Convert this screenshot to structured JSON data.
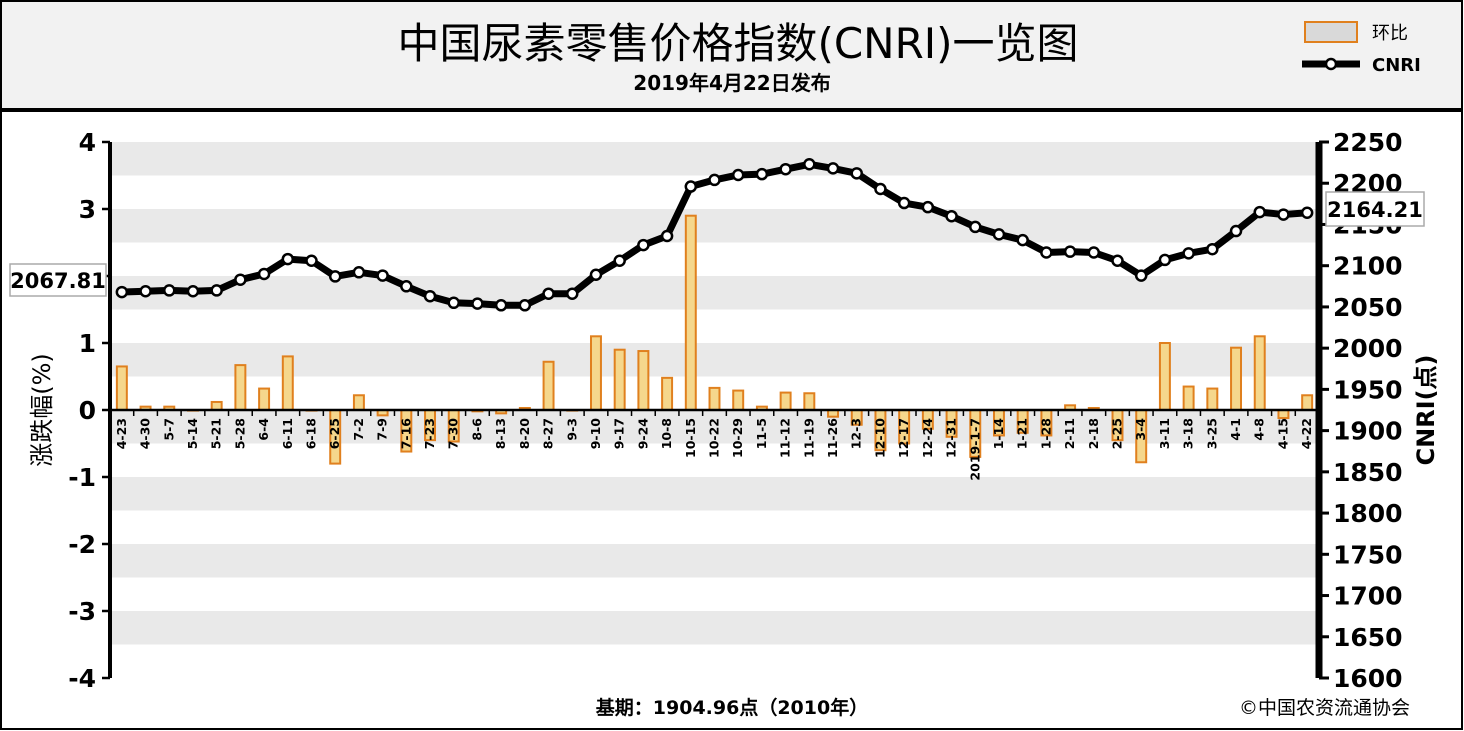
{
  "header": {
    "title": "中国尿素零售价格指数(CNRI)一览图",
    "subtitle": "2019年4月22日发布"
  },
  "legend": {
    "bar_label": "环比",
    "line_label": "CNRI"
  },
  "footer": {
    "base_period": "基期：1904.96点（2010年）",
    "copyright": "©中国农资流通协会"
  },
  "colors": {
    "bar_fill": "#f5d78c",
    "bar_border": "#e0801e",
    "line": "#000000",
    "marker_fill": "#ffffff",
    "band_fill": "#e9e9e9",
    "header_bg": "#f2f2f2"
  },
  "chart_data": {
    "type": "bar+line",
    "categories": [
      "4-23",
      "4-30",
      "5-7",
      "5-14",
      "5-21",
      "5-28",
      "6-4",
      "6-11",
      "6-18",
      "6-25",
      "7-2",
      "7-9",
      "7-16",
      "7-23",
      "7-30",
      "8-6",
      "8-13",
      "8-20",
      "8-27",
      "9-3",
      "9-10",
      "9-17",
      "9-24",
      "10-8",
      "10-15",
      "10-22",
      "10-29",
      "11-5",
      "11-12",
      "11-19",
      "11-26",
      "12-3",
      "12-10",
      "12-17",
      "12-24",
      "12-31",
      "2019-1-7",
      "1-14",
      "1-21",
      "1-28",
      "2-11",
      "2-18",
      "2-25",
      "3-4",
      "3-11",
      "3-18",
      "3-25",
      "4-1",
      "4-8",
      "4-15",
      "4-22"
    ],
    "series": [
      {
        "name": "环比",
        "axis": "left",
        "values": [
          0.65,
          0.05,
          0.05,
          0.0,
          0.12,
          0.67,
          0.32,
          0.8,
          0.0,
          -0.8,
          0.22,
          -0.08,
          -0.62,
          -0.45,
          -0.47,
          -0.02,
          -0.05,
          0.03,
          0.72,
          0.0,
          1.1,
          0.9,
          0.88,
          0.48,
          2.9,
          0.33,
          0.29,
          0.05,
          0.26,
          0.25,
          -0.1,
          -0.22,
          -0.6,
          -0.5,
          -0.28,
          -0.4,
          -0.7,
          -0.38,
          -0.34,
          -0.38,
          0.07,
          0.03,
          -0.45,
          -0.78,
          1.0,
          0.35,
          0.32,
          0.93,
          1.1,
          -0.12,
          0.22
        ]
      },
      {
        "name": "CNRI",
        "axis": "right",
        "values": [
          2068,
          2069,
          2070,
          2069,
          2070,
          2083,
          2090,
          2108,
          2106,
          2087,
          2092,
          2088,
          2075,
          2063,
          2055,
          2054,
          2052,
          2052,
          2066,
          2066,
          2089,
          2106,
          2125,
          2136,
          2196,
          2204,
          2210,
          2211,
          2217,
          2223,
          2218,
          2212,
          2193,
          2176,
          2171,
          2160,
          2147,
          2138,
          2131,
          2116,
          2117,
          2116,
          2106,
          2088,
          2107,
          2115,
          2120,
          2142,
          2165,
          2162,
          2164.21
        ]
      }
    ],
    "first_label": "2067.81",
    "last_label": "2164.21",
    "y_left": {
      "label": "涨跌幅(%)",
      "min": -4,
      "max": 4,
      "step": 1,
      "ticks": [
        "-4",
        "-3",
        "-2",
        "-1",
        "0",
        "1",
        "2",
        "3",
        "4"
      ]
    },
    "y_right": {
      "label": "CNRI(点)",
      "min": 1600,
      "max": 2250,
      "step": 50,
      "ticks": [
        "1600",
        "1650",
        "1700",
        "1750",
        "1800",
        "1850",
        "1900",
        "1950",
        "2000",
        "2050",
        "2100",
        "2150",
        "2200",
        "2250"
      ]
    },
    "grid": "alternating-bands",
    "legend_position": "top-right"
  }
}
